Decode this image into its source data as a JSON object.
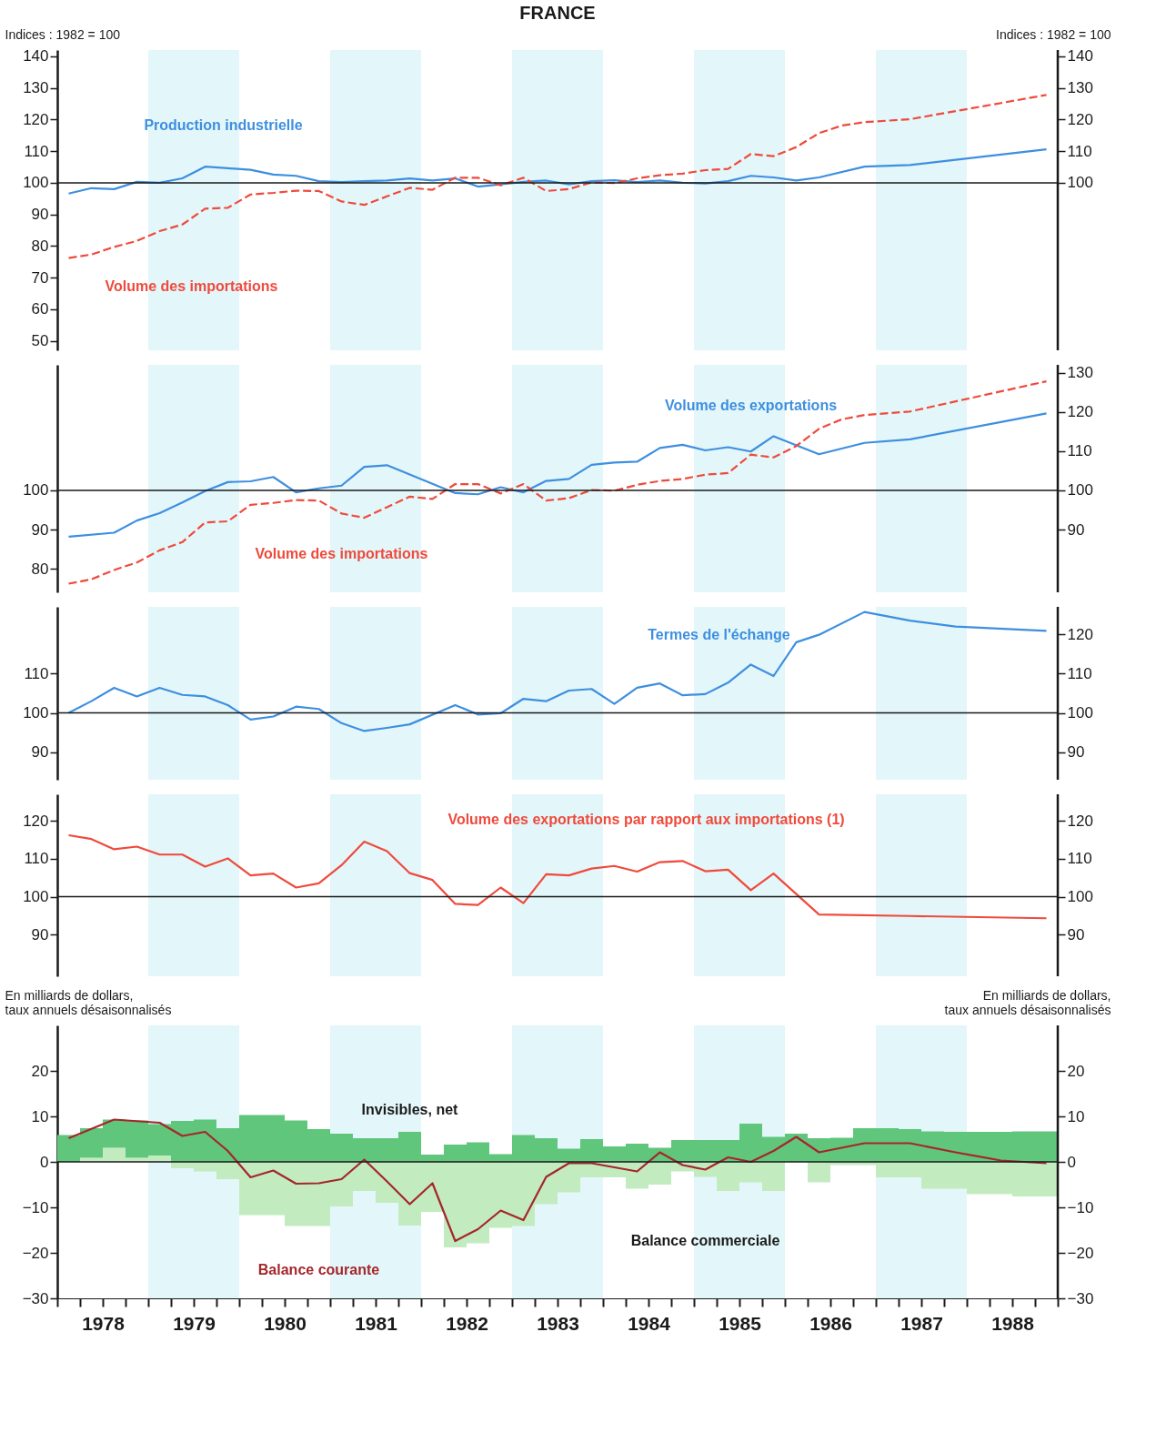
{
  "chart_data": [
    {
      "type": "line",
      "title": "FRANCE",
      "ylabel": "Indices : 1982 = 100",
      "y2label": "Indices : 1982 = 100",
      "tick_labels": "y",
      "xlim": [
        1978,
        1989
      ],
      "ylim": [
        47,
        142
      ],
      "yticks": [
        50,
        60,
        70,
        80,
        90,
        100,
        110,
        120,
        130,
        140
      ],
      "y2lim": [
        47,
        142
      ],
      "y2ticks": [
        100,
        110,
        120,
        130,
        140
      ],
      "series": [
        {
          "name": "Production industrielle",
          "color": "#3d8fe0",
          "line_style": "solid",
          "x": [
            1978.125,
            1978.375,
            1978.625,
            1978.875,
            1979.125,
            1979.375,
            1979.625,
            1979.875,
            1980.125,
            1980.375,
            1980.625,
            1980.875,
            1981.125,
            1981.375,
            1981.625,
            1981.875,
            1982.125,
            1982.375,
            1982.625,
            1982.875,
            1983.125,
            1983.375,
            1983.625,
            1983.875,
            1984.125,
            1984.375,
            1984.625,
            1984.875,
            1985.125,
            1985.375,
            1985.625,
            1985.875,
            1986.125,
            1986.375,
            1986.875,
            1987.375,
            1988.875
          ],
          "values": [
            96.6,
            98.3,
            98.0,
            100.3,
            100.0,
            101.4,
            105.1,
            104.6,
            104.1,
            102.6,
            102.2,
            100.5,
            100.2,
            100.5,
            100.7,
            101.4,
            100.7,
            101.4,
            98.8,
            99.5,
            100.3,
            100.7,
            99.5,
            100.5,
            100.8,
            100.2,
            100.7,
            100.0,
            99.8,
            100.5,
            102.2,
            101.7,
            100.7,
            101.7,
            105.1,
            105.6,
            110.6
          ]
        },
        {
          "name": "Volume des importations",
          "color": "#ef4a3c",
          "line_style": "dashed",
          "x": [
            1978.125,
            1978.375,
            1978.625,
            1978.875,
            1979.125,
            1979.375,
            1979.625,
            1979.875,
            1980.125,
            1980.375,
            1980.625,
            1980.875,
            1981.125,
            1981.375,
            1981.625,
            1981.875,
            1982.125,
            1982.375,
            1982.625,
            1982.875,
            1983.125,
            1983.375,
            1983.625,
            1983.875,
            1984.125,
            1984.375,
            1984.625,
            1984.875,
            1985.125,
            1985.375,
            1985.625,
            1985.875,
            1986.125,
            1986.375,
            1986.625,
            1986.875,
            1987.375,
            1988.875
          ],
          "values": [
            76.2,
            77.3,
            79.7,
            81.6,
            84.7,
            86.8,
            91.8,
            92.1,
            96.3,
            96.8,
            97.5,
            97.4,
            94.1,
            93.0,
            95.7,
            98.4,
            97.8,
            101.6,
            101.6,
            99.2,
            101.6,
            97.4,
            98.0,
            100.1,
            99.9,
            101.4,
            102.4,
            102.9,
            104.0,
            104.4,
            109.1,
            108.4,
            111.3,
            115.7,
            118.1,
            119.2,
            120.1,
            127.8
          ]
        }
      ],
      "ref_lines": [
        {
          "axis": "y",
          "value": 100,
          "color": "#1a1a1a"
        }
      ],
      "bands": [
        {
          "axis": "x",
          "from": 1979,
          "to": 1980,
          "color": "#e3f6f9"
        },
        {
          "axis": "x",
          "from": 1981,
          "to": 1982,
          "color": "#e3f6f9"
        },
        {
          "axis": "x",
          "from": 1983,
          "to": 1984,
          "color": "#e3f6f9"
        },
        {
          "axis": "x",
          "from": 1985,
          "to": 1986,
          "color": "#e3f6f9"
        },
        {
          "axis": "x",
          "from": 1987,
          "to": 1988,
          "color": "#e3f6f9"
        }
      ]
    },
    {
      "type": "line",
      "tick_labels": "y",
      "xlim": [
        1978,
        1989
      ],
      "ylim": [
        74,
        132
      ],
      "yticks": [
        80,
        90,
        100
      ],
      "y2lim": [
        74,
        132
      ],
      "y2ticks": [
        90,
        100,
        110,
        120,
        130
      ],
      "series": [
        {
          "name": "Volume des exportations",
          "color": "#3d8fe0",
          "line_style": "solid",
          "x": [
            1978.125,
            1978.625,
            1978.875,
            1979.125,
            1979.375,
            1979.625,
            1979.875,
            1980.125,
            1980.375,
            1980.625,
            1980.875,
            1981.125,
            1981.375,
            1981.625,
            1982.375,
            1982.625,
            1982.875,
            1983.125,
            1983.375,
            1983.625,
            1983.875,
            1984.125,
            1984.375,
            1984.625,
            1984.875,
            1985.125,
            1985.375,
            1985.625,
            1985.875,
            1986.375,
            1986.875,
            1987.375,
            1988.875
          ],
          "values": [
            88.2,
            89.2,
            92.3,
            94.2,
            96.9,
            99.8,
            102.1,
            102.3,
            103.4,
            99.5,
            100.5,
            101.2,
            106.0,
            106.4,
            99.3,
            99.0,
            100.8,
            99.5,
            102.4,
            102.9,
            106.5,
            107.1,
            107.3,
            110.8,
            111.6,
            110.2,
            111.0,
            109.9,
            113.8,
            109.2,
            112.1,
            113.0,
            119.6
          ]
        },
        {
          "name": "Volume des importations",
          "color": "#ef4a3c",
          "line_style": "dashed",
          "x": [
            1978.125,
            1978.375,
            1978.625,
            1978.875,
            1979.125,
            1979.375,
            1979.625,
            1979.875,
            1980.125,
            1980.375,
            1980.625,
            1980.875,
            1981.125,
            1981.375,
            1981.625,
            1981.875,
            1982.125,
            1982.375,
            1982.625,
            1982.875,
            1983.125,
            1983.375,
            1983.625,
            1983.875,
            1984.125,
            1984.375,
            1984.625,
            1984.875,
            1985.125,
            1985.375,
            1985.625,
            1985.875,
            1986.125,
            1986.375,
            1986.625,
            1986.875,
            1987.375,
            1988.875
          ],
          "values": [
            76.2,
            77.3,
            79.7,
            81.6,
            84.7,
            86.8,
            91.8,
            92.1,
            96.3,
            96.8,
            97.5,
            97.4,
            94.1,
            93.0,
            95.7,
            98.4,
            97.8,
            101.6,
            101.6,
            99.2,
            101.6,
            97.4,
            98.0,
            100.1,
            99.9,
            101.4,
            102.4,
            102.9,
            104.0,
            104.4,
            109.1,
            108.4,
            111.3,
            115.7,
            118.1,
            119.2,
            120.1,
            127.8
          ]
        }
      ],
      "ref_lines": [
        {
          "axis": "y",
          "value": 100,
          "color": "#1a1a1a"
        }
      ],
      "bands": [
        {
          "axis": "x",
          "from": 1979,
          "to": 1980,
          "color": "#e3f6f9"
        },
        {
          "axis": "x",
          "from": 1981,
          "to": 1982,
          "color": "#e3f6f9"
        },
        {
          "axis": "x",
          "from": 1983,
          "to": 1984,
          "color": "#e3f6f9"
        },
        {
          "axis": "x",
          "from": 1985,
          "to": 1986,
          "color": "#e3f6f9"
        },
        {
          "axis": "x",
          "from": 1987,
          "to": 1988,
          "color": "#e3f6f9"
        }
      ]
    },
    {
      "type": "line",
      "tick_labels": "y",
      "xlim": [
        1978,
        1989
      ],
      "ylim": [
        83,
        127
      ],
      "yticks": [
        90,
        100,
        110
      ],
      "y2lim": [
        83,
        127
      ],
      "y2ticks": [
        90,
        100,
        110,
        120
      ],
      "series": [
        {
          "name": "Termes de l'échange",
          "color": "#3d8fe0",
          "line_style": "solid",
          "x": [
            1978.125,
            1978.375,
            1978.625,
            1978.875,
            1979.125,
            1979.375,
            1979.625,
            1979.875,
            1980.125,
            1980.375,
            1980.625,
            1980.875,
            1981.125,
            1981.375,
            1981.625,
            1981.875,
            1982.375,
            1982.625,
            1982.875,
            1983.125,
            1983.375,
            1983.625,
            1983.875,
            1984.125,
            1984.375,
            1984.625,
            1984.875,
            1985.125,
            1985.375,
            1985.625,
            1985.875,
            1986.125,
            1986.375,
            1986.875,
            1987.375,
            1987.875,
            1988.875
          ],
          "values": [
            100,
            103.0,
            106.4,
            104.2,
            106.4,
            104.6,
            104.2,
            102.0,
            98.3,
            99.1,
            101.6,
            101.0,
            97.4,
            95.4,
            96.2,
            97.1,
            102.0,
            99.6,
            99.9,
            103.6,
            103.0,
            105.7,
            106.1,
            102.3,
            106.4,
            107.5,
            104.5,
            104.8,
            107.7,
            112.3,
            109.4,
            118.0,
            119.9,
            125.7,
            123.5,
            122.0,
            120.9
          ]
        }
      ],
      "ref_lines": [
        {
          "axis": "y",
          "value": 100,
          "color": "#1a1a1a"
        }
      ],
      "bands": [
        {
          "axis": "x",
          "from": 1979,
          "to": 1980,
          "color": "#e3f6f9"
        },
        {
          "axis": "x",
          "from": 1981,
          "to": 1982,
          "color": "#e3f6f9"
        },
        {
          "axis": "x",
          "from": 1983,
          "to": 1984,
          "color": "#e3f6f9"
        },
        {
          "axis": "x",
          "from": 1985,
          "to": 1986,
          "color": "#e3f6f9"
        },
        {
          "axis": "x",
          "from": 1987,
          "to": 1988,
          "color": "#e3f6f9"
        }
      ]
    },
    {
      "type": "line",
      "tick_labels": "y",
      "xlim": [
        1978,
        1989
      ],
      "ylim": [
        79,
        127
      ],
      "yticks": [
        90,
        100,
        110,
        120
      ],
      "y2lim": [
        79,
        127
      ],
      "y2ticks": [
        90,
        100,
        110,
        120
      ],
      "series": [
        {
          "name": "Volume des exportations par rapport aux importations (1)",
          "color": "#ef4a3c",
          "line_style": "solid",
          "x": [
            1978.125,
            1978.375,
            1978.625,
            1978.875,
            1979.125,
            1979.375,
            1979.625,
            1979.875,
            1980.125,
            1980.375,
            1980.625,
            1980.875,
            1981.125,
            1981.375,
            1981.625,
            1981.875,
            1982.125,
            1982.375,
            1982.625,
            1982.875,
            1983.125,
            1983.375,
            1983.625,
            1983.875,
            1984.125,
            1984.375,
            1984.625,
            1984.875,
            1985.125,
            1985.375,
            1985.625,
            1985.875,
            1986.375,
            1987.375,
            1988.875
          ],
          "values": [
            116.2,
            115.2,
            112.5,
            113.2,
            111.1,
            111.1,
            107.9,
            110.1,
            105.6,
            106.1,
            102.4,
            103.5,
            108.3,
            114.5,
            112.0,
            106.2,
            104.4,
            98.1,
            97.8,
            102.4,
            98.3,
            105.9,
            105.6,
            107.4,
            108.1,
            106.6,
            109.1,
            109.4,
            106.7,
            107.1,
            101.7,
            106.1,
            95.3,
            94.9,
            94.3
          ]
        }
      ],
      "ref_lines": [
        {
          "axis": "y",
          "value": 100,
          "color": "#1a1a1a"
        }
      ],
      "bands": [
        {
          "axis": "x",
          "from": 1979,
          "to": 1980,
          "color": "#e3f6f9"
        },
        {
          "axis": "x",
          "from": 1981,
          "to": 1982,
          "color": "#e3f6f9"
        },
        {
          "axis": "x",
          "from": 1983,
          "to": 1984,
          "color": "#e3f6f9"
        },
        {
          "axis": "x",
          "from": 1985,
          "to": 1986,
          "color": "#e3f6f9"
        },
        {
          "axis": "x",
          "from": 1987,
          "to": 1988,
          "color": "#e3f6f9"
        }
      ]
    },
    {
      "type": "bar",
      "stacked": true,
      "ylabel": "En milliards de dollars,\ntaux annuels désaisonnalisés",
      "y2label": "En milliards de dollars,\ntaux annuels désaisonnalisés",
      "xlim": [
        1978,
        1989
      ],
      "ylim": [
        -30,
        30
      ],
      "yticks": [
        -30,
        -20,
        -10,
        0,
        10,
        20
      ],
      "y2lim": [
        -30,
        30
      ],
      "y2ticks": [
        -30,
        -20,
        -10,
        0,
        10,
        20
      ],
      "xticks": [
        {
          "value": 1978,
          "label": null
        },
        {
          "value": 1978.25,
          "label": null
        },
        {
          "value": 1978.5,
          "label": "1978"
        },
        {
          "value": 1978.75,
          "label": null
        },
        {
          "value": 1979,
          "label": null
        },
        {
          "value": 1979.25,
          "label": null
        },
        {
          "value": 1979.5,
          "label": "1979"
        },
        {
          "value": 1979.75,
          "label": null
        },
        {
          "value": 1980,
          "label": null
        },
        {
          "value": 1980.25,
          "label": null
        },
        {
          "value": 1980.5,
          "label": "1980"
        },
        {
          "value": 1980.75,
          "label": null
        },
        {
          "value": 1981,
          "label": null
        },
        {
          "value": 1981.25,
          "label": null
        },
        {
          "value": 1981.5,
          "label": "1981"
        },
        {
          "value": 1981.75,
          "label": null
        },
        {
          "value": 1982,
          "label": null
        },
        {
          "value": 1982.25,
          "label": null
        },
        {
          "value": 1982.5,
          "label": "1982"
        },
        {
          "value": 1982.75,
          "label": null
        },
        {
          "value": 1983,
          "label": null
        },
        {
          "value": 1983.25,
          "label": null
        },
        {
          "value": 1983.5,
          "label": "1983"
        },
        {
          "value": 1983.75,
          "label": null
        },
        {
          "value": 1984,
          "label": null
        },
        {
          "value": 1984.25,
          "label": null
        },
        {
          "value": 1984.5,
          "label": "1984"
        },
        {
          "value": 1984.75,
          "label": null
        },
        {
          "value": 1985,
          "label": null
        },
        {
          "value": 1985.25,
          "label": null
        },
        {
          "value": 1985.5,
          "label": "1985"
        },
        {
          "value": 1985.75,
          "label": null
        },
        {
          "value": 1986,
          "label": null
        },
        {
          "value": 1986.25,
          "label": null
        },
        {
          "value": 1986.5,
          "label": "1986"
        },
        {
          "value": 1986.75,
          "label": null
        },
        {
          "value": 1987,
          "label": null
        },
        {
          "value": 1987.25,
          "label": null
        },
        {
          "value": 1987.5,
          "label": "1987"
        },
        {
          "value": 1987.75,
          "label": null
        },
        {
          "value": 1988,
          "label": null
        },
        {
          "value": 1988.25,
          "label": null
        },
        {
          "value": 1988.5,
          "label": "1988"
        },
        {
          "value": 1988.75,
          "label": null
        },
        {
          "value": 1989,
          "label": null
        }
      ],
      "x": [
        1978.125,
        1978.375,
        1978.625,
        1978.875,
        1979.125,
        1979.375,
        1979.625,
        1979.875,
        1980.125,
        1980.375,
        1980.625,
        1980.875,
        1981.125,
        1981.375,
        1981.625,
        1981.875,
        1982.125,
        1982.375,
        1982.625,
        1982.875,
        1983.125,
        1983.375,
        1983.625,
        1983.875,
        1984.125,
        1984.375,
        1984.625,
        1984.875,
        1985.125,
        1985.375,
        1985.625,
        1985.875,
        1986.125,
        1986.375,
        1986.625,
        1986.875,
        1987.125,
        1987.375,
        1987.625,
        1987.875,
        1988.125,
        1988.375,
        1988.625,
        1988.875
      ],
      "series": [
        {
          "name": "Balance commerciale",
          "color": "#c2ecc0",
          "values": [
            null,
            0.9,
            3.1,
            0.9,
            1.4,
            -1.4,
            -2.1,
            -3.8,
            -11.7,
            -11.7,
            -14.1,
            -14.1,
            -9.8,
            -6.4,
            -9.0,
            -14.0,
            -11.0,
            -18.8,
            -17.9,
            -14.5,
            -14.1,
            -9.3,
            -6.7,
            -3.4,
            -3.4,
            -5.9,
            -5.0,
            -2.1,
            -3.3,
            -6.4,
            -4.5,
            -6.4,
            0,
            -4.5,
            -0.7,
            -0.7,
            -3.4,
            -3.4,
            -5.9,
            -5.9,
            -7.1,
            -7.1,
            -7.6,
            -7.6
          ]
        },
        {
          "name": "Invisibles, net",
          "color": "#5fc67c",
          "values": [
            5.9,
            6.5,
            6.2,
            8.2,
            6.9,
            9.0,
            9.3,
            7.4,
            10.3,
            10.3,
            9.1,
            7.2,
            6.2,
            5.2,
            5.2,
            6.6,
            1.6,
            3.8,
            4.3,
            1.7,
            5.9,
            5.2,
            2.9,
            5.0,
            3.4,
            4.0,
            3.1,
            4.8,
            4.8,
            4.8,
            8.4,
            5.5,
            6.2,
            5.2,
            5.3,
            7.4,
            7.4,
            7.2,
            6.7,
            6.6,
            6.6,
            6.6,
            6.7,
            6.7
          ]
        },
        {
          "name": "Balance courante",
          "type": "line",
          "color": "#a5262b",
          "line_style": "solid",
          "x": [
            1978.125,
            1978.625,
            1979.125,
            1979.375,
            1979.625,
            1979.875,
            1980.125,
            1980.375,
            1980.625,
            1980.875,
            1981.125,
            1981.375,
            1981.625,
            1981.875,
            1982.125,
            1982.375,
            1982.625,
            1982.875,
            1983.125,
            1983.375,
            1983.625,
            1983.875,
            1984.125,
            1984.375,
            1984.625,
            1984.875,
            1985.125,
            1985.375,
            1985.625,
            1985.875,
            1986.125,
            1986.375,
            1986.875,
            1987.375,
            1987.875,
            1988.375,
            1988.875
          ],
          "values": [
            5.2,
            9.3,
            8.6,
            5.7,
            6.6,
            2.4,
            -3.4,
            -1.9,
            -4.8,
            -4.7,
            -3.8,
            0.5,
            -4.3,
            -9.3,
            -4.7,
            -17.4,
            -14.8,
            -10.7,
            -12.8,
            -3.3,
            -0.3,
            -0.3,
            -1.2,
            -2.1,
            2.1,
            -0.7,
            -1.7,
            1.0,
            0,
            2.4,
            5.5,
            2.1,
            4.1,
            4.1,
            2.1,
            0.3,
            -0.3
          ]
        }
      ],
      "ref_lines": [
        {
          "axis": "y",
          "value": 0,
          "color": "#1a1a1a"
        }
      ],
      "bands": [
        {
          "axis": "x",
          "from": 1979,
          "to": 1980,
          "color": "#e3f6f9"
        },
        {
          "axis": "x",
          "from": 1981,
          "to": 1982,
          "color": "#e3f6f9"
        },
        {
          "axis": "x",
          "from": 1983,
          "to": 1984,
          "color": "#e3f6f9"
        },
        {
          "axis": "x",
          "from": 1985,
          "to": 1986,
          "color": "#e3f6f9"
        },
        {
          "axis": "x",
          "from": 1987,
          "to": 1988,
          "color": "#e3f6f9"
        }
      ]
    }
  ]
}
